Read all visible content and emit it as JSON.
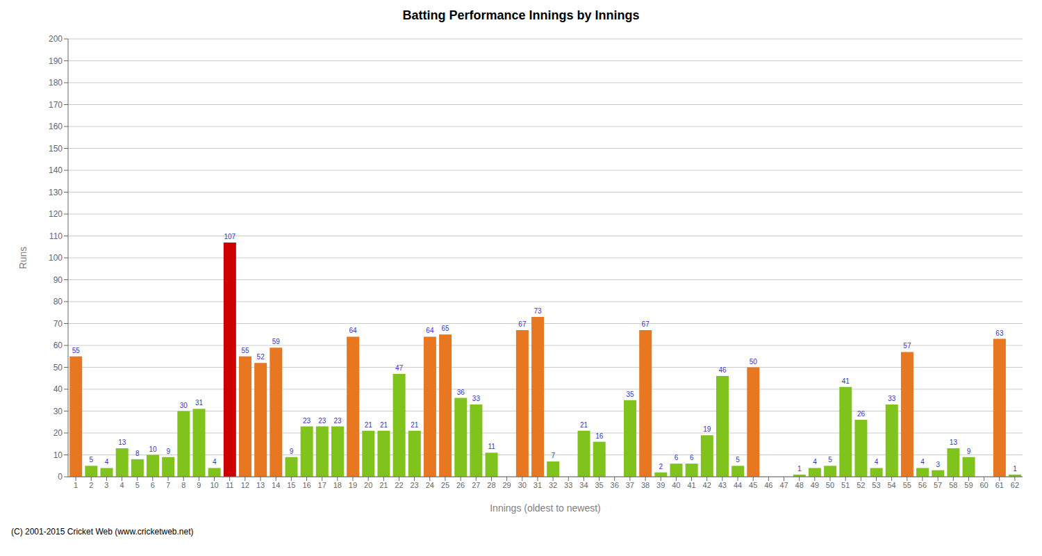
{
  "chart_data": {
    "type": "bar",
    "title": "Batting Performance Innings by Innings",
    "xlabel": "Innings (oldest to newest)",
    "ylabel": "Runs",
    "categories": [
      "1",
      "2",
      "3",
      "4",
      "5",
      "6",
      "7",
      "8",
      "9",
      "10",
      "11",
      "12",
      "13",
      "14",
      "15",
      "16",
      "17",
      "18",
      "19",
      "20",
      "21",
      "22",
      "23",
      "24",
      "25",
      "26",
      "27",
      "28",
      "29",
      "30",
      "31",
      "32",
      "33",
      "34",
      "35",
      "36",
      "37",
      "38",
      "39",
      "40",
      "41",
      "42",
      "43",
      "44",
      "45",
      "46",
      "47",
      "48",
      "49",
      "50",
      "51",
      "52",
      "53",
      "54",
      "55",
      "56",
      "57",
      "58",
      "59",
      "60",
      "61",
      "62"
    ],
    "values": [
      55,
      5,
      4,
      13,
      8,
      10,
      9,
      30,
      31,
      4,
      107,
      55,
      52,
      59,
      9,
      23,
      23,
      23,
      64,
      21,
      21,
      47,
      21,
      64,
      65,
      36,
      33,
      11,
      0,
      67,
      73,
      7,
      0,
      21,
      16,
      0,
      35,
      67,
      2,
      6,
      6,
      19,
      46,
      5,
      50,
      0,
      0,
      1,
      4,
      5,
      41,
      26,
      4,
      33,
      57,
      4,
      3,
      13,
      9,
      0,
      63,
      1
    ],
    "colors": [
      "#e87722",
      "#7fc31c",
      "#7fc31c",
      "#7fc31c",
      "#7fc31c",
      "#7fc31c",
      "#7fc31c",
      "#7fc31c",
      "#7fc31c",
      "#7fc31c",
      "#cc0000",
      "#e87722",
      "#e87722",
      "#e87722",
      "#7fc31c",
      "#7fc31c",
      "#7fc31c",
      "#7fc31c",
      "#e87722",
      "#7fc31c",
      "#7fc31c",
      "#7fc31c",
      "#7fc31c",
      "#e87722",
      "#e87722",
      "#7fc31c",
      "#7fc31c",
      "#7fc31c",
      "#7fc31c",
      "#e87722",
      "#e87722",
      "#7fc31c",
      "#7fc31c",
      "#7fc31c",
      "#7fc31c",
      "#7fc31c",
      "#7fc31c",
      "#e87722",
      "#7fc31c",
      "#7fc31c",
      "#7fc31c",
      "#7fc31c",
      "#7fc31c",
      "#7fc31c",
      "#e87722",
      "#7fc31c",
      "#7fc31c",
      "#7fc31c",
      "#7fc31c",
      "#7fc31c",
      "#7fc31c",
      "#7fc31c",
      "#7fc31c",
      "#7fc31c",
      "#e87722",
      "#7fc31c",
      "#7fc31c",
      "#7fc31c",
      "#7fc31c",
      "#7fc31c",
      "#e87722",
      "#7fc31c"
    ],
    "ylim": [
      0,
      200
    ],
    "yticks": [
      0,
      10,
      20,
      30,
      40,
      50,
      60,
      70,
      80,
      90,
      100,
      110,
      120,
      130,
      140,
      150,
      160,
      170,
      180,
      190,
      200
    ],
    "grid": true,
    "data_labels": true,
    "annotations": [
      "(C) 2001-2015 Cricket Web (www.cricketweb.net)"
    ]
  }
}
